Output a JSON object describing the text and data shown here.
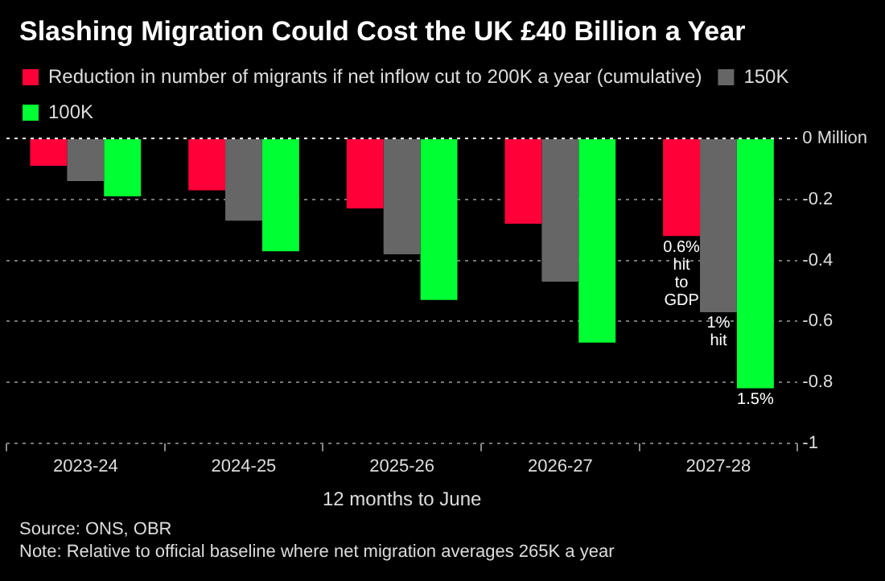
{
  "chart_data": {
    "type": "bar",
    "title": "Slashing Migration Could Cost the UK £40 Billion a Year",
    "xlabel": "12 months to June",
    "categories": [
      "2023-24",
      "2024-25",
      "2025-26",
      "2026-27",
      "2027-28"
    ],
    "series": [
      {
        "name": "Reduction in number of migrants if net inflow cut to 200K a year (cumulative)",
        "color": "#ff0039",
        "values": [
          -0.09,
          -0.17,
          -0.23,
          -0.28,
          -0.32
        ]
      },
      {
        "name": "150K",
        "color": "#666666",
        "values": [
          -0.14,
          -0.27,
          -0.38,
          -0.47,
          -0.57
        ]
      },
      {
        "name": "100K",
        "color": "#00ff33",
        "values": [
          -0.19,
          -0.37,
          -0.53,
          -0.67,
          -0.82
        ]
      }
    ],
    "ylim": [
      -1.0,
      0
    ],
    "yticks": [
      {
        "value": 0,
        "label": "0 Million"
      },
      -0.2,
      -0.4,
      -0.6,
      -0.8,
      -1.0
    ],
    "grid": "y",
    "legend": "top left",
    "annotations": [
      "0.6% hit to GDP",
      {
        "text": "1% hit",
        "x": "2027-28",
        "y": -0.57
      },
      "1.5%",
      "Source: ONS, OBR",
      "Note: Relative to official baseline where net migration averages 265K a year"
    ]
  }
}
